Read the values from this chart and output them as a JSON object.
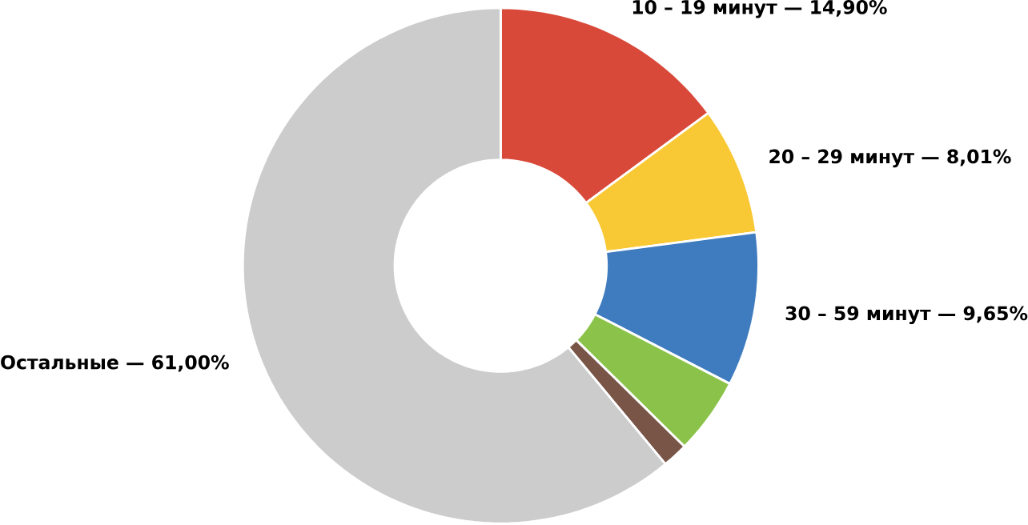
{
  "chart_data": {
    "type": "donut",
    "categories": [
      "10 – 19 минут — 14,90%",
      "20 – 29 минут — 8,01%",
      "30 – 59 минут — 9,65%",
      null,
      null,
      "Остальные — 61,00%"
    ],
    "values": [
      14.9,
      8.01,
      9.65,
      4.8,
      1.6,
      61.0
    ],
    "colors": [
      "#d9493a",
      "#f9c935",
      "#3f7cbf",
      "#8bc34a",
      "#795548",
      "#cccccc"
    ]
  }
}
